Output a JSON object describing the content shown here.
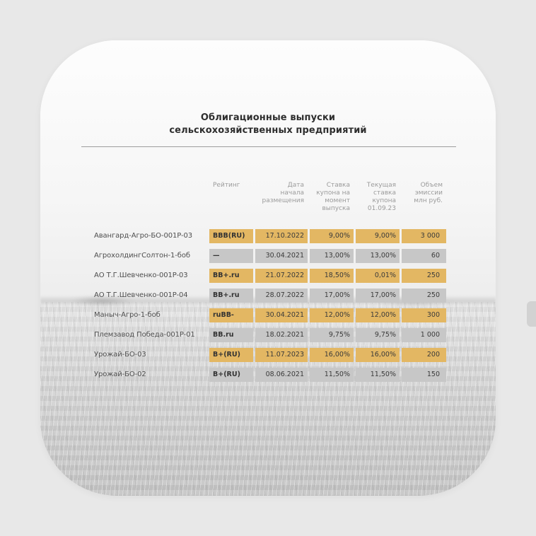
{
  "colors": {
    "gold": "#e3b763",
    "gray": "#c7c7c7"
  },
  "title": "Облигационные выпуски\nсельскохозяйственных предприятий",
  "table": {
    "headers": {
      "rating": "Рейтинг",
      "date": "Дата\nначала\nразмещения",
      "coupon_at_issue": "Ставка\nкупона на\nмомент\nвыпуска",
      "current_coupon": "Текущая\nставка\nкупона\n01.09.23",
      "volume": "Объем\nэмиссии\nмлн руб."
    },
    "rows": [
      {
        "name": "Авангард-Агро-БО-001P-03",
        "rating": "BBB(RU)",
        "date": "17.10.2022",
        "coupon_at_issue": "9,00%",
        "current_coupon": "9,00%",
        "volume": "3 000",
        "highlight": "gold"
      },
      {
        "name": "АгрохолдингСолтон-1-боб",
        "rating": "—",
        "date": "30.04.2021",
        "coupon_at_issue": "13,00%",
        "current_coupon": "13,00%",
        "volume": "60",
        "highlight": "gray"
      },
      {
        "name": "АО Т.Г.Шевченко-001P-03",
        "rating": "BB+.ru",
        "date": "21.07.2022",
        "coupon_at_issue": "18,50%",
        "current_coupon": "0,01%",
        "volume": "250",
        "highlight": "gold"
      },
      {
        "name": "АО Т.Г.Шевченко-001P-04",
        "rating": "BB+.ru",
        "date": "28.07.2022",
        "coupon_at_issue": "17,00%",
        "current_coupon": "17,00%",
        "volume": "250",
        "highlight": "gray"
      },
      {
        "name": "Маныч-Агро-1-боб",
        "rating": "ruBB-",
        "date": "30.04.2021",
        "coupon_at_issue": "12,00%",
        "current_coupon": "12,00%",
        "volume": "300",
        "highlight": "gold"
      },
      {
        "name": "Племзавод Победа-001P-01",
        "rating": "BB.ru",
        "date": "18.02.2021",
        "coupon_at_issue": "9,75%",
        "current_coupon": "9,75%",
        "volume": "1 000",
        "highlight": "gray"
      },
      {
        "name": "Урожай-БО-03",
        "rating": "B+(RU)",
        "date": "11.07.2023",
        "coupon_at_issue": "16,00%",
        "current_coupon": "16,00%",
        "volume": "200",
        "highlight": "gold"
      },
      {
        "name": "Урожай-БО-02",
        "rating": "B+(RU)",
        "date": "08.06.2021",
        "coupon_at_issue": "11,50%",
        "current_coupon": "11,50%",
        "volume": "150",
        "highlight": "gray"
      }
    ]
  },
  "chart_data": {
    "type": "table",
    "title": "Облигационные выпуски сельскохозяйственных предприятий",
    "columns": [
      "",
      "Рейтинг",
      "Дата начала размещения",
      "Ставка купона на момент выпуска",
      "Текущая ставка купона 01.09.23",
      "Объем эмиссии млн руб."
    ],
    "rows": [
      [
        "Авангард-Агро-БО-001P-03",
        "BBB(RU)",
        "17.10.2022",
        "9,00%",
        "9,00%",
        "3 000"
      ],
      [
        "АгрохолдингСолтон-1-боб",
        "—",
        "30.04.2021",
        "13,00%",
        "13,00%",
        "60"
      ],
      [
        "АО Т.Г.Шевченко-001P-03",
        "BB+.ru",
        "21.07.2022",
        "18,50%",
        "0,01%",
        "250"
      ],
      [
        "АО Т.Г.Шевченко-001P-04",
        "BB+.ru",
        "28.07.2022",
        "17,00%",
        "17,00%",
        "250"
      ],
      [
        "Маныч-Агро-1-боб",
        "ruBB-",
        "30.04.2021",
        "12,00%",
        "12,00%",
        "300"
      ],
      [
        "Племзавод Победа-001P-01",
        "BB.ru",
        "18.02.2021",
        "9,75%",
        "9,75%",
        "1 000"
      ],
      [
        "Урожай-БО-03",
        "B+(RU)",
        "11.07.2023",
        "16,00%",
        "16,00%",
        "200"
      ],
      [
        "Урожай-БО-02",
        "B+(RU)",
        "08.06.2021",
        "11,50%",
        "11,50%",
        "150"
      ]
    ],
    "highlight_pattern": [
      "gold",
      "gray",
      "gold",
      "gray",
      "gold",
      "gray",
      "gold",
      "gray"
    ]
  }
}
